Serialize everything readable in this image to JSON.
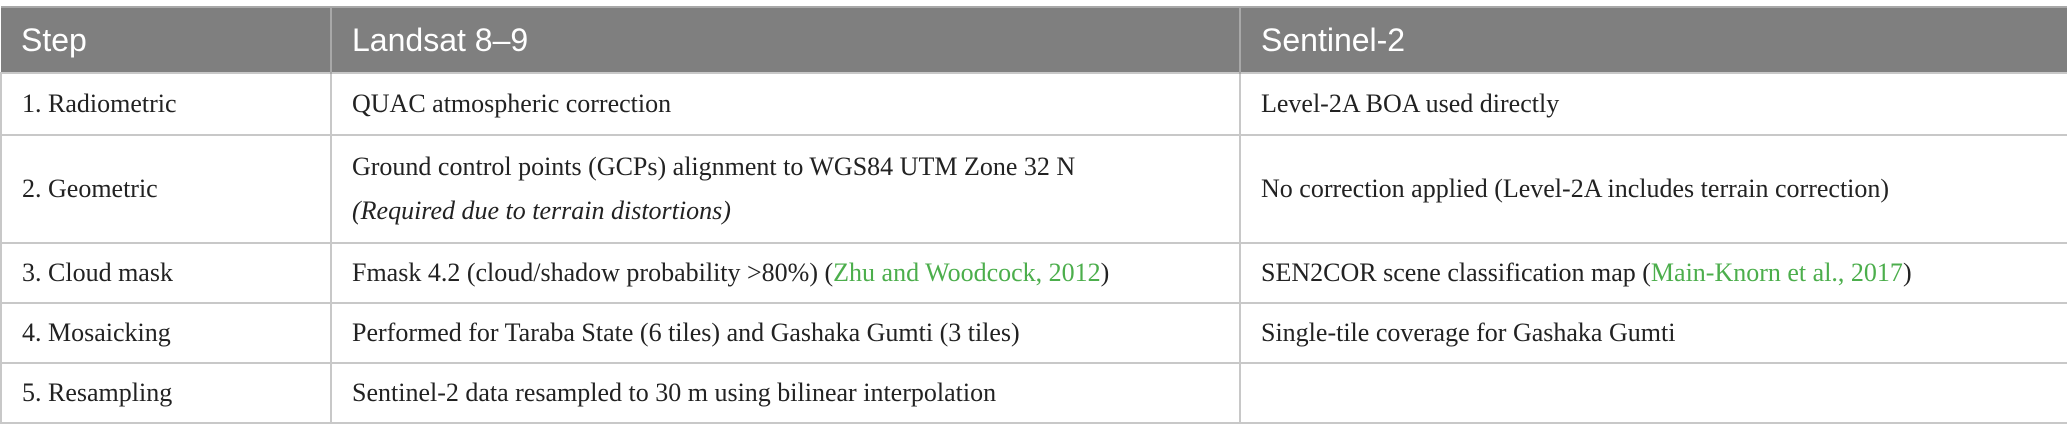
{
  "header": {
    "step": "Step",
    "landsat": "Landsat 8–9",
    "sentinel": "Sentinel-2"
  },
  "rows": [
    {
      "step": "1. Radiometric",
      "landsat": "QUAC atmospheric correction",
      "sentinel": "Level-2A BOA used directly"
    },
    {
      "step": "2. Geometric",
      "landsat": "Ground control points (GCPs) alignment to WGS84 UTM Zone 32 N",
      "landsat_note": "(Required due to terrain distortions)",
      "sentinel": "No correction applied (Level-2A includes terrain correction)"
    },
    {
      "step": "3. Cloud mask",
      "landsat_pre": "Fmask 4.2 (cloud/shadow probability >80%) (",
      "landsat_ref": "Zhu and Woodcock, 2012",
      "landsat_post": ")",
      "sentinel_pre": "SEN2COR scene classification map (",
      "sentinel_ref": "Main-Knorn et al., 2017",
      "sentinel_post": ")"
    },
    {
      "step": "4. Mosaicking",
      "landsat": "Performed for Taraba State (6 tiles) and Gashaka Gumti (3 tiles)",
      "sentinel": "Single-tile coverage for Gashaka Gumti"
    },
    {
      "step": "5. Resampling",
      "landsat": "Sentinel-2 data resampled to 30 m using bilinear interpolation",
      "sentinel": ""
    }
  ],
  "colors": {
    "header_bg": "#7f7f7f",
    "link": "#4cae4c",
    "border": "#c8c8c8"
  }
}
